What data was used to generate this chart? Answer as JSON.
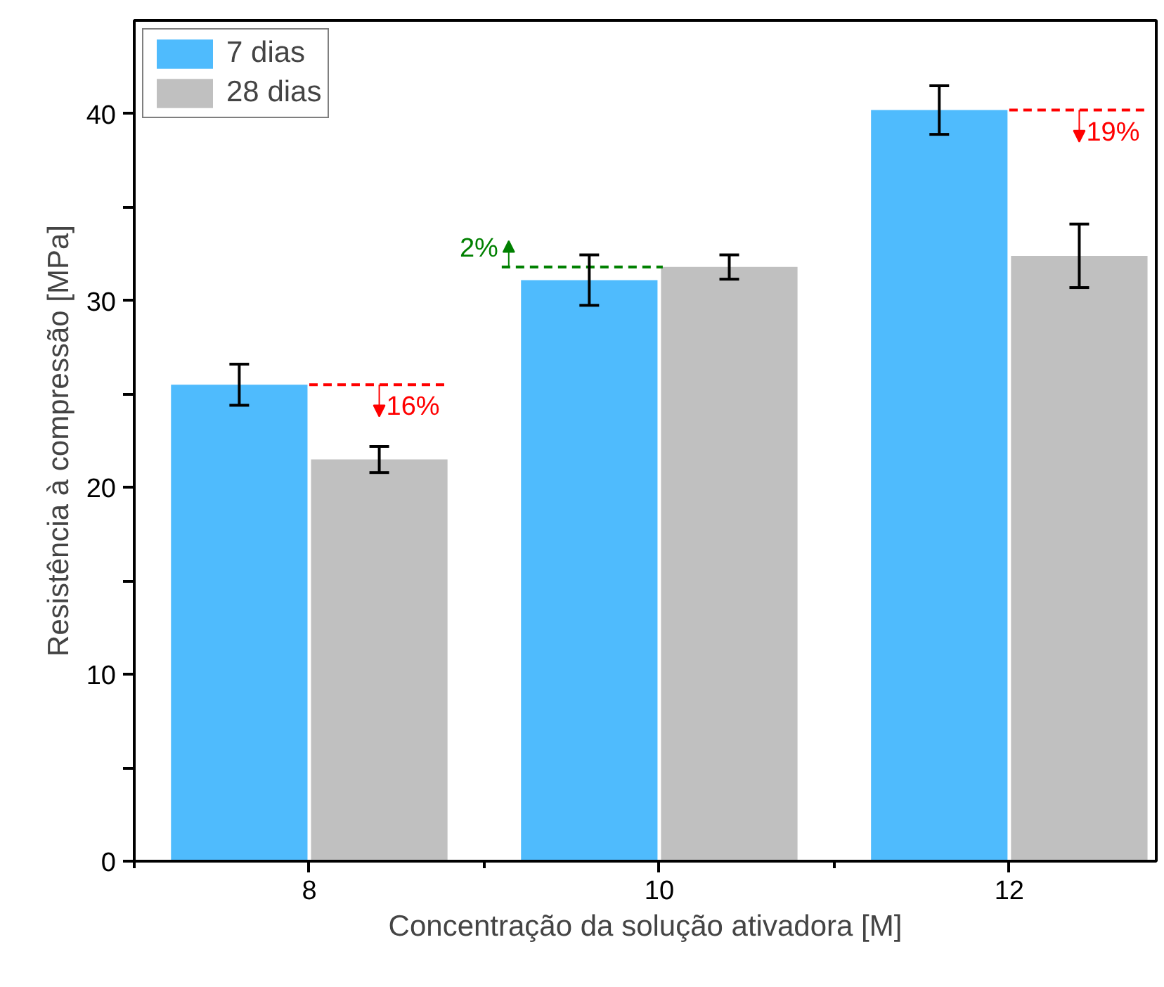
{
  "chart_data": {
    "type": "bar",
    "xlabel": "Concentração da solução ativadora [M]",
    "ylabel": "Resistência à compressão [MPa]",
    "categories": [
      "8",
      "10",
      "12"
    ],
    "series": [
      {
        "name": "7 dias",
        "color": "#4fbbfd",
        "values": [
          25.5,
          31.1,
          40.2
        ],
        "errors": [
          1.1,
          1.35,
          1.3
        ]
      },
      {
        "name": "28 dias",
        "color": "#c0c0c0",
        "values": [
          21.5,
          31.8,
          32.4
        ],
        "errors": [
          0.7,
          0.65,
          1.7
        ]
      }
    ],
    "ylim": [
      0,
      45
    ],
    "yticks": [
      0,
      {
        "value": 5,
        "label": null
      },
      10,
      {
        "value": 15,
        "label": null
      },
      20,
      {
        "value": 25,
        "label": null
      },
      30,
      {
        "value": 35,
        "label": null
      },
      40
    ],
    "grid": false,
    "legend": "top left",
    "annotations": [
      {
        "text": "16%",
        "x": "8",
        "y": 25.5
      },
      {
        "text": "2%",
        "x": "10",
        "y": 31.8
      },
      {
        "text": "19%",
        "x": "12",
        "y": 40.2
      }
    ]
  }
}
